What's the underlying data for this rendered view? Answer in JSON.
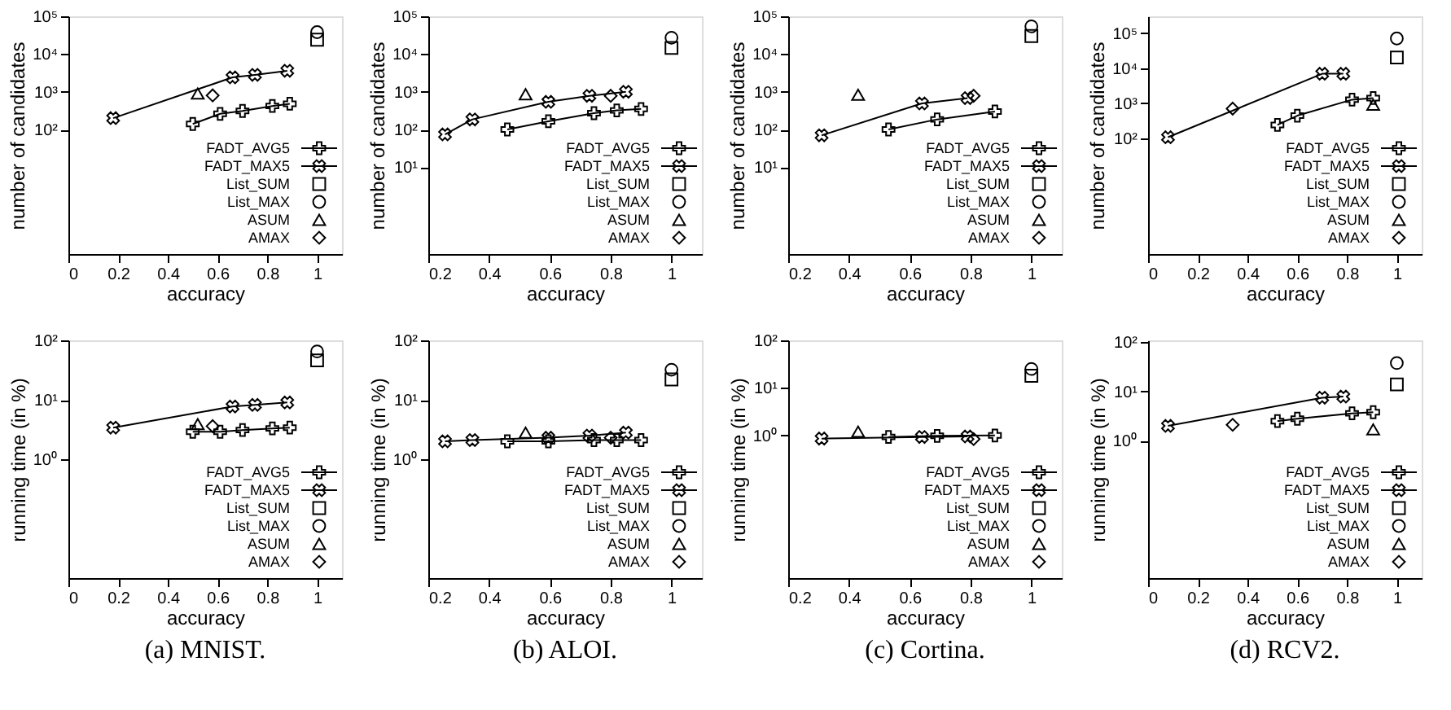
{
  "chart_data": [
    {
      "type": "line",
      "xlabel": "accuracy",
      "ylabel": "number of candidates",
      "xlim": [
        0,
        1.1
      ],
      "xticks": [
        0,
        0.2,
        0.4,
        0.6,
        0.8,
        1
      ],
      "ylim": [
        0.05,
        100000
      ],
      "yticks": [
        {
          "value": 100,
          "label": "10²"
        },
        {
          "value": 1000,
          "label": "10³"
        },
        {
          "value": 10000,
          "label": "10⁴"
        },
        {
          "value": 100000,
          "label": "10⁵"
        }
      ],
      "log": true,
      "legend": "bottom right",
      "series": [
        {
          "name": "FADT_AVG5",
          "type": "line",
          "marker": "cross",
          "line_style": "solid",
          "color": "#000000",
          "x": [
            0.5,
            0.61,
            0.7,
            0.82,
            0.89
          ],
          "values": [
            140,
            260,
            310,
            420,
            480
          ]
        },
        {
          "name": "FADT_MAX5",
          "type": "line",
          "marker": "x",
          "line_style": "solid",
          "color": "#000000",
          "x": [
            0.18,
            0.66,
            0.75,
            0.88
          ],
          "values": [
            200,
            2400,
            2800,
            3600
          ]
        },
        {
          "name": "List_SUM",
          "type": "scatter",
          "marker": "square",
          "color": "#000000",
          "x": [
            1.0
          ],
          "values": [
            24000
          ]
        },
        {
          "name": "List_MAX",
          "type": "scatter",
          "marker": "circle",
          "color": "#000000",
          "x": [
            1.0
          ],
          "values": [
            38000
          ]
        },
        {
          "name": "ASUM",
          "type": "scatter",
          "marker": "triangle",
          "color": "#000000",
          "x": [
            0.52
          ],
          "values": [
            900
          ]
        },
        {
          "name": "AMAX",
          "type": "scatter",
          "marker": "diamond",
          "color": "#000000",
          "x": [
            0.58
          ],
          "values": [
            800
          ]
        }
      ]
    },
    {
      "type": "line",
      "xlabel": "accuracy",
      "ylabel": "number of candidates",
      "xlim": [
        0.2,
        1.1
      ],
      "xticks": [
        0.2,
        0.4,
        0.6,
        0.8,
        1
      ],
      "ylim": [
        0.05,
        100000
      ],
      "yticks": [
        {
          "value": 10,
          "label": "10¹"
        },
        {
          "value": 100,
          "label": "10²"
        },
        {
          "value": 1000,
          "label": "10³"
        },
        {
          "value": 10000,
          "label": "10⁴"
        },
        {
          "value": 100000,
          "label": "10⁵"
        }
      ],
      "log": true,
      "legend": "bottom right",
      "series": [
        {
          "name": "FADT_AVG5",
          "type": "line",
          "marker": "cross",
          "line_style": "solid",
          "color": "#000000",
          "x": [
            0.46,
            0.595,
            0.745,
            0.82,
            0.9
          ],
          "values": [
            100,
            165,
            270,
            320,
            350
          ]
        },
        {
          "name": "FADT_MAX5",
          "type": "line",
          "marker": "x",
          "line_style": "solid",
          "color": "#000000",
          "x": [
            0.255,
            0.345,
            0.595,
            0.73,
            0.85
          ],
          "values": [
            74,
            185,
            540,
            780,
            1000
          ]
        },
        {
          "name": "List_SUM",
          "type": "scatter",
          "marker": "square",
          "color": "#000000",
          "x": [
            1.0
          ],
          "values": [
            14500
          ]
        },
        {
          "name": "List_MAX",
          "type": "scatter",
          "marker": "circle",
          "color": "#000000",
          "x": [
            1.0
          ],
          "values": [
            27000
          ]
        },
        {
          "name": "ASUM",
          "type": "scatter",
          "marker": "triangle",
          "color": "#000000",
          "x": [
            0.52
          ],
          "values": [
            860
          ]
        },
        {
          "name": "AMAX",
          "type": "scatter",
          "marker": "diamond",
          "color": "#000000",
          "x": [
            0.8
          ],
          "values": [
            780
          ]
        }
      ]
    },
    {
      "type": "line",
      "xlabel": "accuracy",
      "ylabel": "number of candidates",
      "xlim": [
        0.2,
        1.1
      ],
      "xticks": [
        0.2,
        0.4,
        0.6,
        0.8,
        1
      ],
      "ylim": [
        0.05,
        100000
      ],
      "yticks": [
        {
          "value": 10,
          "label": "10¹"
        },
        {
          "value": 100,
          "label": "10²"
        },
        {
          "value": 1000,
          "label": "10³"
        },
        {
          "value": 10000,
          "label": "10⁴"
        },
        {
          "value": 100000,
          "label": "10⁵"
        }
      ],
      "log": true,
      "legend": "bottom right",
      "series": [
        {
          "name": "FADT_AVG5",
          "type": "line",
          "marker": "cross",
          "line_style": "solid",
          "color": "#000000",
          "x": [
            0.53,
            0.69,
            0.88
          ],
          "values": [
            100,
            185,
            300
          ]
        },
        {
          "name": "FADT_MAX5",
          "type": "line",
          "marker": "x",
          "line_style": "solid",
          "color": "#000000",
          "x": [
            0.31,
            0.64,
            0.79
          ],
          "values": [
            70,
            490,
            680
          ]
        },
        {
          "name": "List_SUM",
          "type": "scatter",
          "marker": "square",
          "color": "#000000",
          "x": [
            1.0
          ],
          "values": [
            30000
          ]
        },
        {
          "name": "List_MAX",
          "type": "scatter",
          "marker": "circle",
          "color": "#000000",
          "x": [
            1.0
          ],
          "values": [
            54000
          ]
        },
        {
          "name": "ASUM",
          "type": "scatter",
          "marker": "triangle",
          "color": "#000000",
          "x": [
            0.43
          ],
          "values": [
            830
          ]
        },
        {
          "name": "AMAX",
          "type": "scatter",
          "marker": "diamond",
          "color": "#000000",
          "x": [
            0.81
          ],
          "values": [
            780
          ]
        }
      ]
    },
    {
      "type": "line",
      "xlabel": "accuracy",
      "ylabel": "number of candidates",
      "xlim": [
        0,
        1.1
      ],
      "xticks": [
        0,
        0.2,
        0.4,
        0.6,
        0.8,
        1
      ],
      "ylim": [
        0.05,
        300000
      ],
      "yticks": [
        {
          "value": 100,
          "label": "10²"
        },
        {
          "value": 1000,
          "label": "10³"
        },
        {
          "value": 10000,
          "label": "10⁴"
        },
        {
          "value": 100000,
          "label": "10⁵"
        }
      ],
      "log": true,
      "legend": "bottom right",
      "series": [
        {
          "name": "FADT_AVG5",
          "type": "line",
          "marker": "cross",
          "line_style": "solid",
          "color": "#000000",
          "x": [
            0.52,
            0.6,
            0.82,
            0.905
          ],
          "values": [
            240,
            440,
            1260,
            1400
          ]
        },
        {
          "name": "FADT_MAX5",
          "type": "line",
          "marker": "x",
          "line_style": "solid",
          "color": "#000000",
          "x": [
            0.08,
            0.7,
            0.785
          ],
          "values": [
            107,
            6900,
            6900
          ]
        },
        {
          "name": "List_SUM",
          "type": "scatter",
          "marker": "square",
          "color": "#000000",
          "x": [
            1.0
          ],
          "values": [
            20000
          ]
        },
        {
          "name": "List_MAX",
          "type": "scatter",
          "marker": "circle",
          "color": "#000000",
          "x": [
            1.0
          ],
          "values": [
            70000
          ]
        },
        {
          "name": "ASUM",
          "type": "scatter",
          "marker": "triangle",
          "color": "#000000",
          "x": [
            0.905
          ],
          "values": [
            900
          ]
        },
        {
          "name": "AMAX",
          "type": "scatter",
          "marker": "diamond",
          "color": "#000000",
          "x": [
            0.34
          ],
          "values": [
            700
          ]
        }
      ]
    },
    {
      "type": "line",
      "xlabel": "accuracy",
      "ylabel": "running time (in %)",
      "annotations": [
        "(a) MNIST."
      ],
      "xlim": [
        0,
        1.1
      ],
      "xticks": [
        0,
        0.2,
        0.4,
        0.6,
        0.8,
        1
      ],
      "ylim": [
        0.01,
        100
      ],
      "yticks": [
        {
          "value": 1,
          "label": "10⁰"
        },
        {
          "value": 10,
          "label": "10¹"
        },
        {
          "value": 100,
          "label": "10²"
        }
      ],
      "log": true,
      "legend": "bottom right",
      "series": [
        {
          "name": "FADT_AVG5",
          "type": "line",
          "marker": "cross",
          "line_style": "solid",
          "color": "#000000",
          "x": [
            0.5,
            0.61,
            0.7,
            0.82,
            0.89
          ],
          "values": [
            2.9,
            2.9,
            3.1,
            3.3,
            3.4
          ]
        },
        {
          "name": "FADT_MAX5",
          "type": "line",
          "marker": "x",
          "line_style": "solid",
          "color": "#000000",
          "x": [
            0.18,
            0.66,
            0.75,
            0.88
          ],
          "values": [
            3.4,
            7.7,
            8.2,
            9
          ]
        },
        {
          "name": "List_SUM",
          "type": "scatter",
          "marker": "square",
          "color": "#000000",
          "x": [
            1.0
          ],
          "values": [
            46
          ]
        },
        {
          "name": "List_MAX",
          "type": "scatter",
          "marker": "circle",
          "color": "#000000",
          "x": [
            1.0
          ],
          "values": [
            65
          ]
        },
        {
          "name": "ASUM",
          "type": "scatter",
          "marker": "triangle",
          "color": "#000000",
          "x": [
            0.52
          ],
          "values": [
            3.9
          ]
        },
        {
          "name": "AMAX",
          "type": "scatter",
          "marker": "diamond",
          "color": "#000000",
          "x": [
            0.58
          ],
          "values": [
            3.6
          ]
        }
      ]
    },
    {
      "type": "line",
      "xlabel": "accuracy",
      "ylabel": "running time (in %)",
      "annotations": [
        "(b) ALOI."
      ],
      "xlim": [
        0.2,
        1.1
      ],
      "xticks": [
        0.2,
        0.4,
        0.6,
        0.8,
        1
      ],
      "ylim": [
        0.01,
        100
      ],
      "yticks": [
        {
          "value": 1,
          "label": "10⁰"
        },
        {
          "value": 10,
          "label": "10¹"
        },
        {
          "value": 100,
          "label": "10²"
        }
      ],
      "log": true,
      "legend": "bottom right",
      "series": [
        {
          "name": "FADT_AVG5",
          "type": "line",
          "marker": "cross",
          "line_style": "solid",
          "color": "#000000",
          "x": [
            0.46,
            0.595,
            0.745,
            0.82,
            0.9
          ],
          "values": [
            2.0,
            2.0,
            2.1,
            2.1,
            2.1
          ]
        },
        {
          "name": "FADT_MAX5",
          "type": "line",
          "marker": "x",
          "line_style": "solid",
          "color": "#000000",
          "x": [
            0.255,
            0.345,
            0.595,
            0.73,
            0.85
          ],
          "values": [
            2.0,
            2.1,
            2.3,
            2.5,
            2.8
          ]
        },
        {
          "name": "List_SUM",
          "type": "scatter",
          "marker": "square",
          "color": "#000000",
          "x": [
            1.0
          ],
          "values": [
            22
          ]
        },
        {
          "name": "List_MAX",
          "type": "scatter",
          "marker": "circle",
          "color": "#000000",
          "x": [
            1.0
          ],
          "values": [
            32
          ]
        },
        {
          "name": "ASUM",
          "type": "scatter",
          "marker": "triangle",
          "color": "#000000",
          "x": [
            0.52
          ],
          "values": [
            2.8
          ]
        },
        {
          "name": "AMAX",
          "type": "scatter",
          "marker": "diamond",
          "color": "#000000",
          "x": [
            0.8
          ],
          "values": [
            2.3
          ]
        }
      ]
    },
    {
      "type": "line",
      "xlabel": "accuracy",
      "ylabel": "running time (in %)",
      "annotations": [
        "(c) Cortina."
      ],
      "xlim": [
        0.2,
        1.1
      ],
      "xticks": [
        0.2,
        0.4,
        0.6,
        0.8,
        1
      ],
      "ylim": [
        0.001,
        100
      ],
      "yticks": [
        {
          "value": 1,
          "label": "10⁰"
        },
        {
          "value": 10,
          "label": "10¹"
        },
        {
          "value": 100,
          "label": "10²"
        }
      ],
      "log": true,
      "legend": "bottom right",
      "series": [
        {
          "name": "FADT_AVG5",
          "type": "line",
          "marker": "cross",
          "line_style": "solid",
          "color": "#000000",
          "x": [
            0.53,
            0.69,
            0.88
          ],
          "values": [
            0.93,
            0.98,
            1.0
          ]
        },
        {
          "name": "FADT_MAX5",
          "type": "line",
          "marker": "x",
          "line_style": "solid",
          "color": "#000000",
          "x": [
            0.31,
            0.64,
            0.79
          ],
          "values": [
            0.86,
            0.93,
            0.95
          ]
        },
        {
          "name": "List_SUM",
          "type": "scatter",
          "marker": "square",
          "color": "#000000",
          "x": [
            1.0
          ],
          "values": [
            18
          ]
        },
        {
          "name": "List_MAX",
          "type": "scatter",
          "marker": "circle",
          "color": "#000000",
          "x": [
            1.0
          ],
          "values": [
            25
          ]
        },
        {
          "name": "ASUM",
          "type": "scatter",
          "marker": "triangle",
          "color": "#000000",
          "x": [
            0.43
          ],
          "values": [
            1.2
          ]
        },
        {
          "name": "AMAX",
          "type": "scatter",
          "marker": "diamond",
          "color": "#000000",
          "x": [
            0.81
          ],
          "values": [
            0.84
          ]
        }
      ]
    },
    {
      "type": "line",
      "xlabel": "accuracy",
      "ylabel": "running time (in %)",
      "annotations": [
        "(d) RCV2."
      ],
      "xlim": [
        0,
        1.1
      ],
      "xticks": [
        0,
        0.2,
        0.4,
        0.6,
        0.8,
        1
      ],
      "ylim": [
        0.0016,
        110
      ],
      "yticks": [
        {
          "value": 1,
          "label": "10⁰"
        },
        {
          "value": 10,
          "label": "10¹"
        },
        {
          "value": 100,
          "label": "10²"
        }
      ],
      "log": true,
      "legend": "bottom right",
      "series": [
        {
          "name": "FADT_AVG5",
          "type": "line",
          "marker": "cross",
          "line_style": "solid",
          "color": "#000000",
          "x": [
            0.52,
            0.6,
            0.82,
            0.905
          ],
          "values": [
            2.5,
            2.8,
            3.6,
            3.8
          ]
        },
        {
          "name": "FADT_MAX5",
          "type": "line",
          "marker": "x",
          "line_style": "solid",
          "color": "#000000",
          "x": [
            0.08,
            0.7,
            0.785
          ],
          "values": [
            2.0,
            7.5,
            7.9
          ]
        },
        {
          "name": "List_SUM",
          "type": "scatter",
          "marker": "square",
          "color": "#000000",
          "x": [
            1.0
          ],
          "values": [
            14
          ]
        },
        {
          "name": "List_MAX",
          "type": "scatter",
          "marker": "circle",
          "color": "#000000",
          "x": [
            1.0
          ],
          "values": [
            38
          ]
        },
        {
          "name": "ASUM",
          "type": "scatter",
          "marker": "triangle",
          "color": "#000000",
          "x": [
            0.905
          ],
          "values": [
            1.7
          ]
        },
        {
          "name": "AMAX",
          "type": "scatter",
          "marker": "diamond",
          "color": "#000000",
          "x": [
            0.34
          ],
          "values": [
            2.1
          ]
        }
      ]
    }
  ]
}
